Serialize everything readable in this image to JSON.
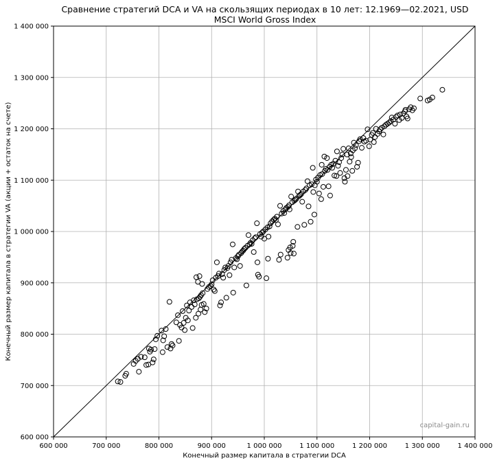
{
  "chart_data": {
    "type": "scatter",
    "title": "Сравнение стратегий DCA и VA на скользящих периодах в 10 лет: 12.1969—02.2021, USD",
    "subtitle": "MSCI World Gross Index",
    "xlabel": "Конечный размер капитала в стратегии DCA",
    "ylabel": "Конечный размер капитала в стратегии VA (акции + остаток на счете)",
    "xlim": [
      600000,
      1400000
    ],
    "ylim": [
      600000,
      1400000
    ],
    "x_ticks": [
      600000,
      700000,
      800000,
      900000,
      1000000,
      1100000,
      1200000,
      1300000,
      1400000
    ],
    "y_ticks": [
      600000,
      700000,
      800000,
      900000,
      1000000,
      1100000,
      1200000,
      1300000,
      1400000
    ],
    "x_tick_labels": [
      "600 000",
      "700 000",
      "800 000",
      "900 000",
      "1 000 000",
      "1 100 000",
      "1 200 000",
      "1 300 000",
      "1 400 000"
    ],
    "y_tick_labels": [
      "600 000",
      "700 000",
      "800 000",
      "900 000",
      "1 000 000",
      "1 100 000",
      "1 200 000",
      "1 300 000",
      "1 400 000"
    ],
    "grid": true,
    "reference_line": "y = x",
    "marker": "hollow-circle",
    "watermark": "capital-gain.ru",
    "points": [
      [
        722000,
        708000
      ],
      [
        727000,
        707000
      ],
      [
        736000,
        719000
      ],
      [
        738000,
        723000
      ],
      [
        752000,
        742000
      ],
      [
        756000,
        748000
      ],
      [
        760000,
        752000
      ],
      [
        762000,
        727000
      ],
      [
        766000,
        756000
      ],
      [
        773000,
        755000
      ],
      [
        776000,
        740000
      ],
      [
        780000,
        741000
      ],
      [
        781000,
        772000
      ],
      [
        783000,
        766000
      ],
      [
        785000,
        770000
      ],
      [
        788000,
        745000
      ],
      [
        790000,
        751000
      ],
      [
        792000,
        771000
      ],
      [
        794000,
        790000
      ],
      [
        797000,
        797000
      ],
      [
        805000,
        807000
      ],
      [
        807000,
        765000
      ],
      [
        808000,
        788000
      ],
      [
        810000,
        796000
      ],
      [
        813000,
        810000
      ],
      [
        816000,
        775000
      ],
      [
        820000,
        863000
      ],
      [
        822000,
        772000
      ],
      [
        824000,
        781000
      ],
      [
        826000,
        778000
      ],
      [
        833000,
        823000
      ],
      [
        836000,
        837000
      ],
      [
        838000,
        787000
      ],
      [
        840000,
        818000
      ],
      [
        843000,
        813000
      ],
      [
        845000,
        845000
      ],
      [
        847000,
        822000
      ],
      [
        849000,
        808000
      ],
      [
        851000,
        832000
      ],
      [
        853000,
        856000
      ],
      [
        855000,
        827000
      ],
      [
        857000,
        846000
      ],
      [
        859000,
        862000
      ],
      [
        862000,
        853000
      ],
      [
        864000,
        812000
      ],
      [
        866000,
        866000
      ],
      [
        868000,
        858000
      ],
      [
        870000,
        832000
      ],
      [
        871000,
        911000
      ],
      [
        872000,
        868000
      ],
      [
        874000,
        902000
      ],
      [
        875000,
        840000
      ],
      [
        876000,
        870000
      ],
      [
        877000,
        913000
      ],
      [
        878000,
        873000
      ],
      [
        879000,
        848000
      ],
      [
        880000,
        876000
      ],
      [
        881000,
        857000
      ],
      [
        882000,
        898000
      ],
      [
        883000,
        880000
      ],
      [
        885000,
        859000
      ],
      [
        887000,
        843000
      ],
      [
        890000,
        850000
      ],
      [
        892000,
        888000
      ],
      [
        895000,
        892000
      ],
      [
        898000,
        894000
      ],
      [
        900000,
        897000
      ],
      [
        902000,
        905000
      ],
      [
        904000,
        887000
      ],
      [
        906000,
        884000
      ],
      [
        908000,
        910000
      ],
      [
        910000,
        940000
      ],
      [
        912000,
        913000
      ],
      [
        914000,
        918000
      ],
      [
        916000,
        856000
      ],
      [
        918000,
        862000
      ],
      [
        920000,
        917000
      ],
      [
        922000,
        910000
      ],
      [
        924000,
        925000
      ],
      [
        926000,
        930000
      ],
      [
        928000,
        871000
      ],
      [
        930000,
        929000
      ],
      [
        932000,
        933000
      ],
      [
        934000,
        915000
      ],
      [
        936000,
        940000
      ],
      [
        938000,
        945000
      ],
      [
        940000,
        975000
      ],
      [
        941000,
        881000
      ],
      [
        943000,
        930000
      ],
      [
        946000,
        948000
      ],
      [
        948000,
        946000
      ],
      [
        950000,
        952000
      ],
      [
        952000,
        955000
      ],
      [
        954000,
        933000
      ],
      [
        956000,
        958000
      ],
      [
        958000,
        961000
      ],
      [
        960000,
        963000
      ],
      [
        962000,
        966000
      ],
      [
        964000,
        968000
      ],
      [
        966000,
        895000
      ],
      [
        968000,
        972000
      ],
      [
        970000,
        993000
      ],
      [
        972000,
        975000
      ],
      [
        974000,
        978000
      ],
      [
        976000,
        976000
      ],
      [
        978000,
        983000
      ],
      [
        980000,
        960000
      ],
      [
        982000,
        987000
      ],
      [
        984000,
        989000
      ],
      [
        986000,
        1016000
      ],
      [
        987000,
        940000
      ],
      [
        988000,
        916000
      ],
      [
        990000,
        912000
      ],
      [
        992000,
        995000
      ],
      [
        994000,
        990000
      ],
      [
        996000,
        998000
      ],
      [
        998000,
        1000000
      ],
      [
        1000000,
        986000
      ],
      [
        1002000,
        1004000
      ],
      [
        1004000,
        909000
      ],
      [
        1006000,
        1008000
      ],
      [
        1007000,
        947000
      ],
      [
        1008000,
        990000
      ],
      [
        1010000,
        1010000
      ],
      [
        1012000,
        1016000
      ],
      [
        1015000,
        1020000
      ],
      [
        1018000,
        1023000
      ],
      [
        1020000,
        1025000
      ],
      [
        1022000,
        1022000
      ],
      [
        1024000,
        1029000
      ],
      [
        1026000,
        1014000
      ],
      [
        1028000,
        945000
      ],
      [
        1030000,
        1050000
      ],
      [
        1031000,
        955000
      ],
      [
        1033000,
        1035000
      ],
      [
        1036000,
        1040000
      ],
      [
        1038000,
        1036000
      ],
      [
        1040000,
        1043000
      ],
      [
        1042000,
        1046000
      ],
      [
        1044000,
        949000
      ],
      [
        1045000,
        1048000
      ],
      [
        1046000,
        964000
      ],
      [
        1047000,
        1051000
      ],
      [
        1048000,
        1043000
      ],
      [
        1049000,
        969000
      ],
      [
        1050000,
        958000
      ],
      [
        1051000,
        1068000
      ],
      [
        1053000,
        1057000
      ],
      [
        1054000,
        972000
      ],
      [
        1055000,
        980000
      ],
      [
        1056000,
        957000
      ],
      [
        1057000,
        1060000
      ],
      [
        1059000,
        1062000
      ],
      [
        1061000,
        1064000
      ],
      [
        1063000,
        1009000
      ],
      [
        1064000,
        1078000
      ],
      [
        1066000,
        1069000
      ],
      [
        1068000,
        1071000
      ],
      [
        1070000,
        1073000
      ],
      [
        1072000,
        1058000
      ],
      [
        1074000,
        1078000
      ],
      [
        1076000,
        1013000
      ],
      [
        1078000,
        1081000
      ],
      [
        1080000,
        1084000
      ],
      [
        1082000,
        1098000
      ],
      [
        1084000,
        1049000
      ],
      [
        1086000,
        1090000
      ],
      [
        1088000,
        1019000
      ],
      [
        1090000,
        1092000
      ],
      [
        1092000,
        1124000
      ],
      [
        1093000,
        1077000
      ],
      [
        1095000,
        1033000
      ],
      [
        1096000,
        1090000
      ],
      [
        1098000,
        1101000
      ],
      [
        1100000,
        1097000
      ],
      [
        1102000,
        1105000
      ],
      [
        1104000,
        1074000
      ],
      [
        1106000,
        1110000
      ],
      [
        1108000,
        1063000
      ],
      [
        1109000,
        1130000
      ],
      [
        1110000,
        1112000
      ],
      [
        1112000,
        1087000
      ],
      [
        1114000,
        1146000
      ],
      [
        1115000,
        1118000
      ],
      [
        1117000,
        1122000
      ],
      [
        1119000,
        1143000
      ],
      [
        1120000,
        1120000
      ],
      [
        1122000,
        1088000
      ],
      [
        1124000,
        1126000
      ],
      [
        1125000,
        1070000
      ],
      [
        1127000,
        1130000
      ],
      [
        1129000,
        1124000
      ],
      [
        1131000,
        1132000
      ],
      [
        1133000,
        1109000
      ],
      [
        1135000,
        1138000
      ],
      [
        1137000,
        1108000
      ],
      [
        1138000,
        1156000
      ],
      [
        1140000,
        1128000
      ],
      [
        1142000,
        1135000
      ],
      [
        1144000,
        1114000
      ],
      [
        1146000,
        1143000
      ],
      [
        1148000,
        1150000
      ],
      [
        1150000,
        1161000
      ],
      [
        1152000,
        1104000
      ],
      [
        1153000,
        1097000
      ],
      [
        1155000,
        1120000
      ],
      [
        1157000,
        1150000
      ],
      [
        1158000,
        1108000
      ],
      [
        1160000,
        1162000
      ],
      [
        1162000,
        1136000
      ],
      [
        1164000,
        1152000
      ],
      [
        1165000,
        1145000
      ],
      [
        1167000,
        1118000
      ],
      [
        1168000,
        1158000
      ],
      [
        1170000,
        1173000
      ],
      [
        1172000,
        1162000
      ],
      [
        1174000,
        1168000
      ],
      [
        1176000,
        1126000
      ],
      [
        1178000,
        1134000
      ],
      [
        1180000,
        1176000
      ],
      [
        1182000,
        1180000
      ],
      [
        1185000,
        1163000
      ],
      [
        1188000,
        1182000
      ],
      [
        1190000,
        1175000
      ],
      [
        1193000,
        1177000
      ],
      [
        1196000,
        1199000
      ],
      [
        1199000,
        1166000
      ],
      [
        1201000,
        1179000
      ],
      [
        1204000,
        1188000
      ],
      [
        1206000,
        1192000
      ],
      [
        1208000,
        1174000
      ],
      [
        1210000,
        1184000
      ],
      [
        1212000,
        1200000
      ],
      [
        1215000,
        1190000
      ],
      [
        1218000,
        1195000
      ],
      [
        1220000,
        1199000
      ],
      [
        1223000,
        1202000
      ],
      [
        1226000,
        1189000
      ],
      [
        1228000,
        1205000
      ],
      [
        1231000,
        1208000
      ],
      [
        1234000,
        1210000
      ],
      [
        1237000,
        1212000
      ],
      [
        1240000,
        1215000
      ],
      [
        1242000,
        1222000
      ],
      [
        1245000,
        1218000
      ],
      [
        1248000,
        1210000
      ],
      [
        1250000,
        1223000
      ],
      [
        1253000,
        1226000
      ],
      [
        1256000,
        1217000
      ],
      [
        1258000,
        1228000
      ],
      [
        1261000,
        1221000
      ],
      [
        1264000,
        1230000
      ],
      [
        1267000,
        1234000
      ],
      [
        1270000,
        1224000
      ],
      [
        1272000,
        1220000
      ],
      [
        1275000,
        1238000
      ],
      [
        1278000,
        1242000
      ],
      [
        1281000,
        1236000
      ],
      [
        1284000,
        1240000
      ],
      [
        1296000,
        1259000
      ],
      [
        1310000,
        1255000
      ],
      [
        1314000,
        1257000
      ],
      [
        1319000,
        1261000
      ],
      [
        1338000,
        1276000
      ],
      [
        1268000,
        1237000
      ]
    ]
  }
}
